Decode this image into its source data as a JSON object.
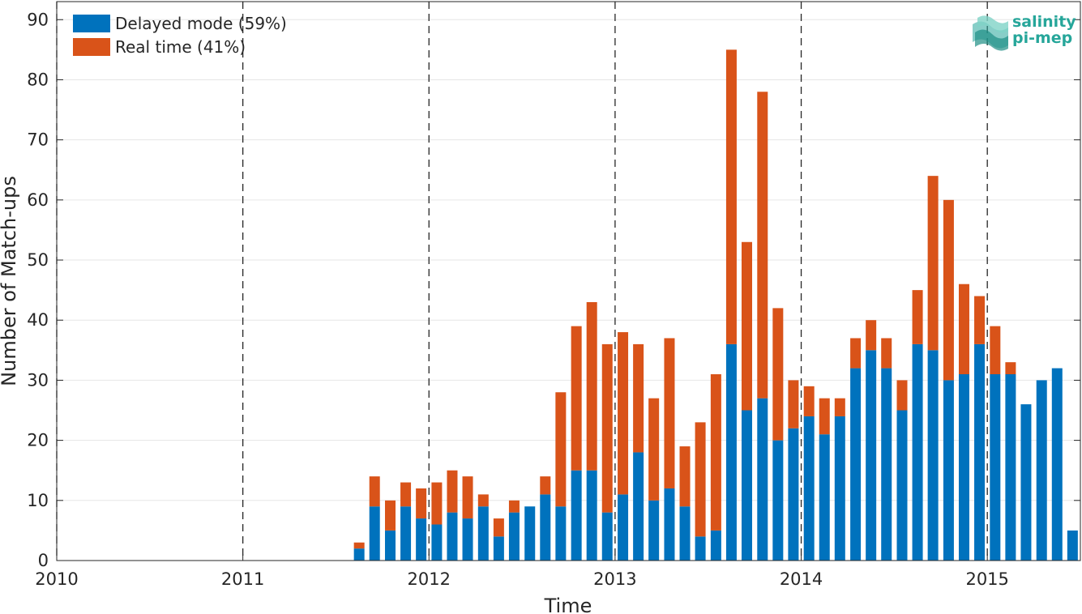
{
  "chart_data": {
    "type": "bar",
    "stacked": true,
    "xlabel": "Time",
    "ylabel": "Number of Match-ups",
    "ylim": [
      0,
      93
    ],
    "yticks": [
      0,
      10,
      20,
      30,
      40,
      50,
      60,
      70,
      80,
      90
    ],
    "xlim": [
      2010.0,
      2015.5
    ],
    "xticks": [
      2010,
      2011,
      2012,
      2013,
      2014,
      2015
    ],
    "vlines": [
      2010,
      2011,
      2012,
      2013,
      2014,
      2015
    ],
    "grid": true,
    "legend_position": "top-left",
    "legend": [
      {
        "label": "Delayed mode (59%)",
        "color": "#0072BD"
      },
      {
        "label": "Real time (41%)",
        "color": "#D95319"
      }
    ],
    "series": [
      {
        "name": "Delayed mode (59%)",
        "color": "#0072BD",
        "values": [
          2,
          9,
          5,
          9,
          7,
          6,
          8,
          7,
          9,
          4,
          8,
          9,
          11,
          9,
          15,
          15,
          8,
          11,
          18,
          10,
          12,
          9,
          4,
          5,
          36,
          25,
          27,
          20,
          22,
          24,
          21,
          24,
          32,
          35,
          32,
          25,
          36,
          35,
          30,
          31,
          36,
          31,
          31,
          26,
          30,
          32,
          5
        ]
      },
      {
        "name": "Real time (41%)",
        "color": "#D95319",
        "values": [
          1,
          5,
          5,
          4,
          5,
          7,
          7,
          7,
          2,
          3,
          2,
          0,
          3,
          19,
          24,
          28,
          28,
          27,
          18,
          17,
          25,
          10,
          19,
          26,
          49,
          28,
          51,
          22,
          8,
          5,
          6,
          3,
          5,
          5,
          5,
          5,
          9,
          29,
          30,
          15,
          8,
          8,
          2,
          0,
          0,
          0,
          0
        ]
      }
    ],
    "x": [
      2011.625,
      2011.708,
      2011.792,
      2011.875,
      2011.958,
      2012.042,
      2012.125,
      2012.208,
      2012.292,
      2012.375,
      2012.458,
      2012.542,
      2012.625,
      2012.708,
      2012.792,
      2012.875,
      2012.958,
      2013.042,
      2013.125,
      2013.208,
      2013.292,
      2013.375,
      2013.458,
      2013.542,
      2013.625,
      2013.708,
      2013.792,
      2013.875,
      2013.958,
      2014.042,
      2014.125,
      2014.208,
      2014.292,
      2014.375,
      2014.458,
      2014.542,
      2014.625,
      2014.708,
      2014.792,
      2014.875,
      2014.958,
      2015.042,
      2015.125,
      2015.208,
      2015.292,
      2015.375,
      2015.458
    ]
  },
  "logo": {
    "line1": "salinity",
    "line2": "pi-mep",
    "color": "#26a69a"
  }
}
